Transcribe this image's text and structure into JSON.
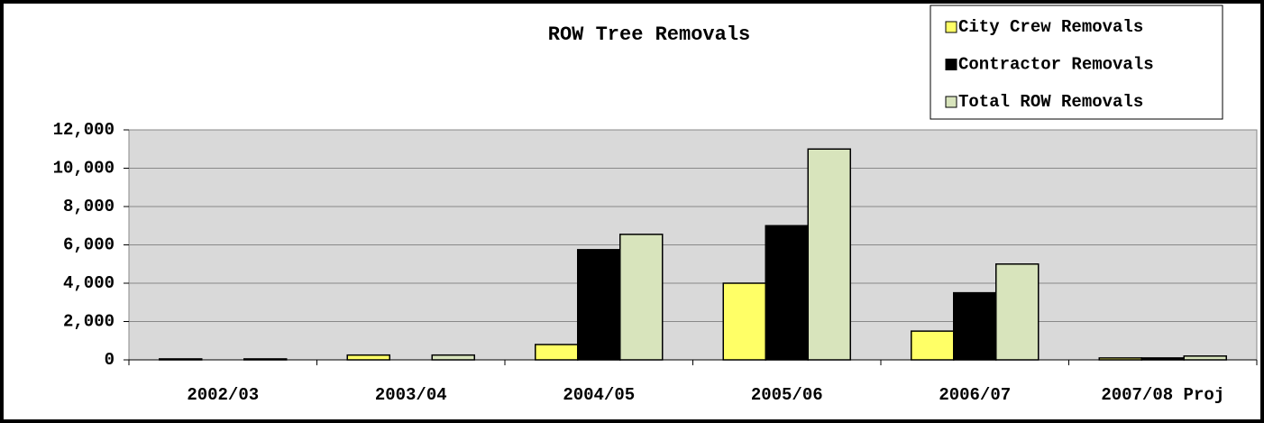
{
  "chart_data": {
    "type": "bar",
    "title": "ROW Tree Removals",
    "categories": [
      "2002/03",
      "2003/04",
      "2004/05",
      "2005/06",
      "2006/07",
      "2007/08 Proj"
    ],
    "series": [
      {
        "name": "City Crew Removals",
        "color": "#ffff66",
        "values": [
          50,
          250,
          800,
          4000,
          1500,
          100
        ]
      },
      {
        "name": "Contractor Removals",
        "color": "#000000",
        "values": [
          0,
          0,
          5750,
          7000,
          3500,
          100
        ]
      },
      {
        "name": "Total ROW Removals",
        "color": "#d8e4bc",
        "values": [
          50,
          250,
          6550,
          11000,
          5000,
          200
        ]
      }
    ],
    "ylim": [
      0,
      12000
    ],
    "yticks": [
      0,
      {
        "value": 2000,
        "label": "2,000"
      },
      {
        "value": 4000,
        "label": "4,000"
      },
      {
        "value": 6000,
        "label": "6,000"
      },
      {
        "value": 8000,
        "label": "8,000"
      },
      {
        "value": 10000,
        "label": "10,000"
      },
      {
        "value": 12000,
        "label": "12,000"
      }
    ],
    "grid": true,
    "legend": "top-right",
    "plot_background": "#d9d9d9"
  }
}
